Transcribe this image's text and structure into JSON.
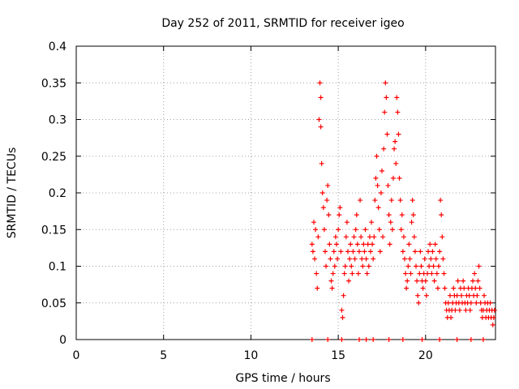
{
  "chart_data": {
    "type": "scatter",
    "title": "Day 252 of 2011, SRMTID for receiver igeo",
    "xlabel": "GPS time / hours",
    "ylabel": "SRMTID / TECUs",
    "xlim": [
      0,
      24
    ],
    "ylim": [
      0,
      0.4
    ],
    "grid": true,
    "marker": "+",
    "x_ticks": [
      "0",
      "5",
      "10",
      "15",
      "20"
    ],
    "x_tick_values": [
      0,
      5,
      10,
      15,
      20
    ],
    "y_ticks": [
      "0",
      "0.05",
      "0.1",
      "0.15",
      "0.2",
      "0.25",
      "0.3",
      "0.35",
      "0.4"
    ],
    "y_tick_values": [
      0,
      0.05,
      0.1,
      0.15,
      0.2,
      0.25,
      0.3,
      0.35,
      0.4
    ],
    "series": [
      {
        "name": "SRMTID",
        "color": "#ff0000",
        "points": [
          [
            13.5,
            0.13
          ],
          [
            13.55,
            0.12
          ],
          [
            13.6,
            0.16
          ],
          [
            13.65,
            0.11
          ],
          [
            13.7,
            0.15
          ],
          [
            13.75,
            0.09
          ],
          [
            13.8,
            0.07
          ],
          [
            13.85,
            0.14
          ],
          [
            13.9,
            0.3
          ],
          [
            13.95,
            0.35
          ],
          [
            14.0,
            0.29
          ],
          [
            14.0,
            0.33
          ],
          [
            14.05,
            0.24
          ],
          [
            14.1,
            0.2
          ],
          [
            14.15,
            0.18
          ],
          [
            14.2,
            0.15
          ],
          [
            14.25,
            0.12
          ],
          [
            14.3,
            0.1
          ],
          [
            14.35,
            0.19
          ],
          [
            14.4,
            0.21
          ],
          [
            14.45,
            0.17
          ],
          [
            14.5,
            0.13
          ],
          [
            14.55,
            0.11
          ],
          [
            14.6,
            0.08
          ],
          [
            14.65,
            0.07
          ],
          [
            14.7,
            0.09
          ],
          [
            14.75,
            0.12
          ],
          [
            14.8,
            0.1
          ],
          [
            14.85,
            0.14
          ],
          [
            14.9,
            0.13
          ],
          [
            14.95,
            0.11
          ],
          [
            15.0,
            0.15
          ],
          [
            15.05,
            0.17
          ],
          [
            15.1,
            0.18
          ],
          [
            15.15,
            0.12
          ],
          [
            15.2,
            0.04
          ],
          [
            15.25,
            0.03
          ],
          [
            15.3,
            0.06
          ],
          [
            15.35,
            0.09
          ],
          [
            15.4,
            0.1
          ],
          [
            15.45,
            0.14
          ],
          [
            15.5,
            0.16
          ],
          [
            15.55,
            0.12
          ],
          [
            15.6,
            0.08
          ],
          [
            15.65,
            0.11
          ],
          [
            15.7,
            0.13
          ],
          [
            15.75,
            0.1
          ],
          [
            15.8,
            0.09
          ],
          [
            15.85,
            0.12
          ],
          [
            15.9,
            0.14
          ],
          [
            15.95,
            0.11
          ],
          [
            16.0,
            0.15
          ],
          [
            16.05,
            0.17
          ],
          [
            16.1,
            0.13
          ],
          [
            16.15,
            0.09
          ],
          [
            16.2,
            0.12
          ],
          [
            16.25,
            0.19
          ],
          [
            16.3,
            0.14
          ],
          [
            16.35,
            0.11
          ],
          [
            16.4,
            0.1
          ],
          [
            16.45,
            0.13
          ],
          [
            16.5,
            0.12
          ],
          [
            16.55,
            0.15
          ],
          [
            16.6,
            0.11
          ],
          [
            16.65,
            0.09
          ],
          [
            16.7,
            0.13
          ],
          [
            16.75,
            0.1
          ],
          [
            16.8,
            0.14
          ],
          [
            16.85,
            0.12
          ],
          [
            16.9,
            0.16
          ],
          [
            16.95,
            0.13
          ],
          [
            17.0,
            0.11
          ],
          [
            17.05,
            0.14
          ],
          [
            17.1,
            0.19
          ],
          [
            17.15,
            0.22
          ],
          [
            17.2,
            0.25
          ],
          [
            17.25,
            0.21
          ],
          [
            17.3,
            0.18
          ],
          [
            17.35,
            0.15
          ],
          [
            17.4,
            0.12
          ],
          [
            17.45,
            0.2
          ],
          [
            17.5,
            0.23
          ],
          [
            17.55,
            0.14
          ],
          [
            17.6,
            0.26
          ],
          [
            17.65,
            0.31
          ],
          [
            17.7,
            0.35
          ],
          [
            17.75,
            0.33
          ],
          [
            17.8,
            0.28
          ],
          [
            17.85,
            0.21
          ],
          [
            17.9,
            0.17
          ],
          [
            17.95,
            0.13
          ],
          [
            18.0,
            0.16
          ],
          [
            18.05,
            0.19
          ],
          [
            18.1,
            0.15
          ],
          [
            18.15,
            0.22
          ],
          [
            18.2,
            0.26
          ],
          [
            18.25,
            0.27
          ],
          [
            18.3,
            0.24
          ],
          [
            18.35,
            0.33
          ],
          [
            18.4,
            0.31
          ],
          [
            18.45,
            0.28
          ],
          [
            18.5,
            0.22
          ],
          [
            18.55,
            0.19
          ],
          [
            18.6,
            0.15
          ],
          [
            18.65,
            0.17
          ],
          [
            18.7,
            0.12
          ],
          [
            18.75,
            0.14
          ],
          [
            18.8,
            0.11
          ],
          [
            18.85,
            0.09
          ],
          [
            18.9,
            0.07
          ],
          [
            18.95,
            0.08
          ],
          [
            19.0,
            0.1
          ],
          [
            19.05,
            0.13
          ],
          [
            19.1,
            0.11
          ],
          [
            19.15,
            0.09
          ],
          [
            19.2,
            0.16
          ],
          [
            19.25,
            0.19
          ],
          [
            19.3,
            0.17
          ],
          [
            19.35,
            0.14
          ],
          [
            19.4,
            0.12
          ],
          [
            19.45,
            0.1
          ],
          [
            19.5,
            0.08
          ],
          [
            19.55,
            0.06
          ],
          [
            19.6,
            0.05
          ],
          [
            19.65,
            0.09
          ],
          [
            19.7,
            0.12
          ],
          [
            19.75,
            0.1
          ],
          [
            19.8,
            0.08
          ],
          [
            19.85,
            0.07
          ],
          [
            19.9,
            0.09
          ],
          [
            19.95,
            0.11
          ],
          [
            20.0,
            0.08
          ],
          [
            20.05,
            0.06
          ],
          [
            20.1,
            0.09
          ],
          [
            20.15,
            0.12
          ],
          [
            20.2,
            0.1
          ],
          [
            20.25,
            0.13
          ],
          [
            20.3,
            0.11
          ],
          [
            20.35,
            0.09
          ],
          [
            20.4,
            0.12
          ],
          [
            20.45,
            0.1
          ],
          [
            20.5,
            0.08
          ],
          [
            20.55,
            0.13
          ],
          [
            20.6,
            0.11
          ],
          [
            20.65,
            0.09
          ],
          [
            20.7,
            0.07
          ],
          [
            20.75,
            0.1
          ],
          [
            20.8,
            0.12
          ],
          [
            20.85,
            0.19
          ],
          [
            20.9,
            0.17
          ],
          [
            20.95,
            0.14
          ],
          [
            21.0,
            0.11
          ],
          [
            21.05,
            0.09
          ],
          [
            21.1,
            0.07
          ],
          [
            21.15,
            0.05
          ],
          [
            21.2,
            0.04
          ],
          [
            21.25,
            0.03
          ],
          [
            21.3,
            0.05
          ],
          [
            21.35,
            0.04
          ],
          [
            21.4,
            0.06
          ],
          [
            21.45,
            0.03
          ],
          [
            21.5,
            0.04
          ],
          [
            21.55,
            0.05
          ],
          [
            21.6,
            0.07
          ],
          [
            21.65,
            0.06
          ],
          [
            21.7,
            0.04
          ],
          [
            21.75,
            0.05
          ],
          [
            21.8,
            0.06
          ],
          [
            21.85,
            0.08
          ],
          [
            21.9,
            0.05
          ],
          [
            21.95,
            0.04
          ],
          [
            22.0,
            0.07
          ],
          [
            22.05,
            0.06
          ],
          [
            22.1,
            0.05
          ],
          [
            22.15,
            0.08
          ],
          [
            22.2,
            0.07
          ],
          [
            22.25,
            0.05
          ],
          [
            22.3,
            0.04
          ],
          [
            22.35,
            0.06
          ],
          [
            22.4,
            0.05
          ],
          [
            22.45,
            0.07
          ],
          [
            22.5,
            0.06
          ],
          [
            22.55,
            0.04
          ],
          [
            22.6,
            0.05
          ],
          [
            22.65,
            0.07
          ],
          [
            22.7,
            0.08
          ],
          [
            22.75,
            0.06
          ],
          [
            22.8,
            0.09
          ],
          [
            22.85,
            0.07
          ],
          [
            22.9,
            0.05
          ],
          [
            22.95,
            0.06
          ],
          [
            23.0,
            0.08
          ],
          [
            23.05,
            0.1
          ],
          [
            23.1,
            0.07
          ],
          [
            23.15,
            0.05
          ],
          [
            23.2,
            0.04
          ],
          [
            23.25,
            0.03
          ],
          [
            23.3,
            0.04
          ],
          [
            23.35,
            0.06
          ],
          [
            23.4,
            0.05
          ],
          [
            23.45,
            0.03
          ],
          [
            23.5,
            0.04
          ],
          [
            23.55,
            0.05
          ],
          [
            23.6,
            0.03
          ],
          [
            23.65,
            0.04
          ],
          [
            23.7,
            0.05
          ],
          [
            23.75,
            0.03
          ],
          [
            23.8,
            0.04
          ],
          [
            23.85,
            0.02
          ],
          [
            23.9,
            0.03
          ],
          [
            23.95,
            0.04
          ]
        ]
      },
      {
        "name": "baseline",
        "color": "#ff0000",
        "points": [
          [
            13.5,
            0
          ],
          [
            14.4,
            0
          ],
          [
            15.2,
            0
          ],
          [
            16.2,
            0
          ],
          [
            16.6,
            0
          ],
          [
            17.0,
            0
          ],
          [
            17.9,
            0
          ],
          [
            18.7,
            0
          ],
          [
            19.8,
            0
          ],
          [
            20.8,
            0
          ],
          [
            21.8,
            0
          ],
          [
            22.6,
            0
          ],
          [
            23.3,
            0
          ]
        ]
      }
    ]
  }
}
